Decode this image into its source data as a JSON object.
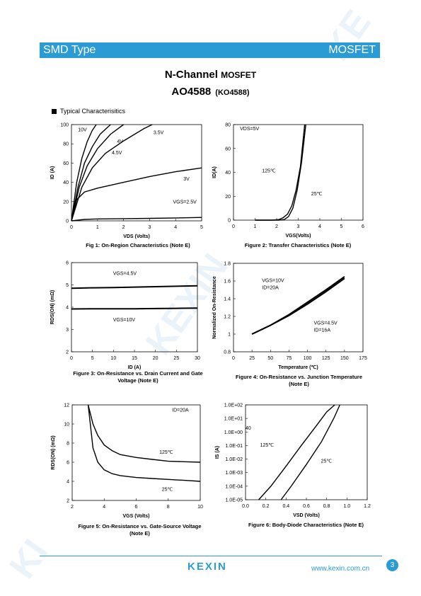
{
  "header": {
    "left": "SMD Type",
    "right": "MOSFET"
  },
  "title": {
    "line1_main": "N-Channel ",
    "line1_small": "MOSFET",
    "line2_main": "AO4588",
    "line2_small": "(KO4588)"
  },
  "section": "Typical  Characterisitics",
  "colors": {
    "accent": "#2b9bd6"
  },
  "charts": [
    {
      "id": "fig1",
      "type": "line",
      "caption1": "Fig 1: On-Region Characteristics (Note E)",
      "caption2": "",
      "xticks": [
        "0",
        "1",
        "2",
        "3",
        "4",
        "5"
      ],
      "yticks": [
        "0",
        "20",
        "40",
        "60",
        "80",
        "100"
      ],
      "xlabel": "VDS (Volts)",
      "ylabel": "ID (A)",
      "annotations": [
        "10V",
        "4V",
        "3.5V",
        "4.5V",
        "3V",
        "VGS=2.5V"
      ]
    },
    {
      "id": "fig2",
      "type": "line",
      "caption1": "Figure 2: Transfer Characteristics (Note E)",
      "caption2": "",
      "xticks": [
        "0",
        "1",
        "2",
        "3",
        "4",
        "5",
        "6"
      ],
      "yticks": [
        "0",
        "20",
        "40",
        "60",
        "80"
      ],
      "xlabel": "VGS(Volts)",
      "ylabel": "ID(A)",
      "annotations": [
        "VDS=5V",
        "125℃",
        "25℃"
      ]
    },
    {
      "id": "fig3",
      "type": "line",
      "caption1": "Figure 3: On-Resistance vs. Drain Current and Gate",
      "caption2": "Voltage (Note E)",
      "xticks": [
        "0",
        "5",
        "10",
        "15",
        "20",
        "25",
        "30"
      ],
      "yticks": [
        "2",
        "3",
        "4",
        "5",
        "6"
      ],
      "xlabel": "ID (A)",
      "ylabel": "RDS(ON) (mΩ)",
      "annotations": [
        "VGS=4.5V",
        "VGS=10V"
      ]
    },
    {
      "id": "fig4",
      "type": "line",
      "caption1": "Figure 4: On-Resistance vs. Junction Temperature",
      "caption2": "(Note E)",
      "xticks": [
        "0",
        "25",
        "50",
        "75",
        "100",
        "125",
        "150",
        "175"
      ],
      "yticks": [
        "0.8",
        "1",
        "1.2",
        "1.4",
        "1.6",
        "1.8"
      ],
      "xlabel": "Temperature (℃)",
      "ylabel": "Normalized On-Resistance",
      "annotations": [
        "VGS=10V",
        "ID=20A",
        "VGS=4.5V",
        "ID=16A"
      ]
    },
    {
      "id": "fig5",
      "type": "line",
      "caption1": "Figure 5: On-Resistance vs. Gate-Source Voltage",
      "caption2": "(Note E)",
      "xticks": [
        "2",
        "4",
        "6",
        "8",
        "10"
      ],
      "yticks": [
        "2",
        "4",
        "6",
        "8",
        "10",
        "12"
      ],
      "xlabel": "VGS (Volts)",
      "ylabel": "RDS(ON) (mΩ)",
      "annotations": [
        "ID=20A",
        "125℃",
        "25℃"
      ]
    },
    {
      "id": "fig6",
      "type": "line",
      "caption1": "Figure 6: Body-Diode Characteristics (Note E)",
      "caption2": "",
      "xticks": [
        "0.0",
        "0.2",
        "0.4",
        "0.6",
        "0.8",
        "1.0",
        "1.2"
      ],
      "yticks": [
        "1.0E-05",
        "1.0E-04",
        "1.0E-03",
        "1.0E-02",
        "1.0E-01",
        "1.0E+00",
        "1.0E+01",
        "1.0E+02"
      ],
      "xlabel": "VSD (Volts)",
      "ylabel": "IS (A)",
      "annotations": [
        "40",
        "125℃",
        "25℃"
      ]
    }
  ],
  "chart_data": [
    {
      "type": "line",
      "title": "Fig 1: On-Region Characteristics (Note E)",
      "xlabel": "VDS (Volts)",
      "ylabel": "ID (A)",
      "xlim": [
        0,
        5
      ],
      "ylim": [
        0,
        100
      ],
      "series": [
        {
          "name": "10V",
          "x": [
            0,
            0.2,
            0.4,
            0.6,
            0.8,
            0.95
          ],
          "y": [
            0,
            40,
            65,
            82,
            94,
            100
          ]
        },
        {
          "name": "4.5V",
          "x": [
            0,
            0.25,
            0.5,
            0.8,
            1.1,
            1.5
          ],
          "y": [
            0,
            35,
            60,
            77,
            90,
            100
          ]
        },
        {
          "name": "4V",
          "x": [
            0,
            0.3,
            0.6,
            1,
            1.5,
            2
          ],
          "y": [
            0,
            35,
            57,
            75,
            90,
            100
          ]
        },
        {
          "name": "3.5V",
          "x": [
            0,
            0.4,
            0.8,
            1.3,
            2,
            2.8,
            3.1
          ],
          "y": [
            0,
            35,
            55,
            70,
            83,
            96,
            100
          ]
        },
        {
          "name": "3V",
          "x": [
            0,
            0.2,
            0.5,
            1,
            2,
            3,
            4,
            5
          ],
          "y": [
            0,
            22,
            30,
            34,
            40,
            46,
            51,
            55
          ]
        },
        {
          "name": "VGS=2.5V",
          "x": [
            0,
            0.5,
            1,
            2,
            3,
            4,
            5
          ],
          "y": [
            0,
            1.5,
            2,
            2.3,
            2.6,
            3,
            3.5
          ]
        }
      ]
    },
    {
      "type": "line",
      "title": "Figure 2: Transfer Characteristics (Note E)",
      "xlabel": "VGS(Volts)",
      "ylabel": "ID(A)",
      "xlim": [
        0,
        6
      ],
      "ylim": [
        0,
        80
      ],
      "series": [
        {
          "name": "125℃",
          "x": [
            1,
            1.8,
            2.1,
            2.3,
            2.5,
            2.7,
            2.9,
            3.1,
            3.3
          ],
          "y": [
            0,
            0,
            0.5,
            2,
            5,
            12,
            25,
            45,
            80
          ]
        },
        {
          "name": "25℃",
          "x": [
            1,
            2.1,
            2.35,
            2.55,
            2.75,
            2.95,
            3.15,
            3.35
          ],
          "y": [
            0,
            0,
            0.5,
            3,
            10,
            25,
            48,
            80
          ]
        }
      ]
    },
    {
      "type": "line",
      "title": "Figure 3: On-Resistance vs. Drain Current and Gate Voltage (Note E)",
      "xlabel": "ID (A)",
      "ylabel": "RDS(ON) (mΩ)",
      "xlim": [
        0,
        30
      ],
      "ylim": [
        2,
        6
      ],
      "series": [
        {
          "name": "VGS=4.5V",
          "x": [
            0,
            5,
            10,
            15,
            20,
            25,
            30
          ],
          "y": [
            4.85,
            4.87,
            4.88,
            4.9,
            4.92,
            4.94,
            4.96
          ]
        },
        {
          "name": "VGS=10V",
          "x": [
            0,
            5,
            10,
            15,
            20,
            25,
            30
          ],
          "y": [
            3.92,
            3.93,
            3.93,
            3.93,
            3.94,
            3.95,
            3.96
          ]
        }
      ]
    },
    {
      "type": "line",
      "title": "Figure 4: On-Resistance vs. Junction Temperature (Note E)",
      "xlabel": "Temperature (℃)",
      "ylabel": "Normalized On-Resistance",
      "xlim": [
        0,
        175
      ],
      "ylim": [
        0.8,
        1.8
      ],
      "series": [
        {
          "name": "VGS=10V, ID=20A",
          "x": [
            25,
            50,
            75,
            100,
            125,
            150
          ],
          "y": [
            1.0,
            1.1,
            1.22,
            1.36,
            1.5,
            1.65
          ]
        },
        {
          "name": "VGS=4.5V, ID=16A",
          "x": [
            25,
            50,
            75,
            100,
            125,
            150
          ],
          "y": [
            1.0,
            1.1,
            1.21,
            1.34,
            1.48,
            1.63
          ]
        }
      ]
    },
    {
      "type": "line",
      "title": "Figure 5: On-Resistance vs. Gate-Source Voltage (Note E)",
      "xlabel": "VGS (Volts)",
      "ylabel": "RDS(ON) (mΩ)",
      "xlim": [
        2,
        10
      ],
      "ylim": [
        2,
        12
      ],
      "series": [
        {
          "name": "125℃",
          "x": [
            3,
            3.3,
            3.6,
            4,
            4.5,
            5,
            6,
            7,
            8,
            9,
            10
          ],
          "y": [
            12,
            10,
            8.8,
            7.8,
            7.2,
            6.8,
            6.5,
            6.3,
            6.1,
            6.05,
            6.0
          ]
        },
        {
          "name": "25℃",
          "x": [
            3,
            3.3,
            3.6,
            4,
            4.5,
            5,
            6,
            7,
            8,
            9,
            10
          ],
          "y": [
            12,
            7.5,
            6.0,
            5.2,
            4.8,
            4.6,
            4.4,
            4.3,
            4.2,
            4.1,
            4.0
          ]
        }
      ]
    },
    {
      "type": "line",
      "title": "Figure 6: Body-Diode Characteristics (Note E)",
      "xlabel": "VSD (Volts)",
      "ylabel": "IS (A)",
      "xlim": [
        0,
        1.2
      ],
      "ylim": [
        1e-05,
        100
      ],
      "yscale": "log",
      "series": [
        {
          "name": "125℃",
          "x": [
            0.13,
            0.25,
            0.4,
            0.55,
            0.7,
            0.8,
            0.88
          ],
          "y": [
            1e-05,
            0.0001,
            0.003,
            0.1,
            3,
            30,
            100
          ]
        },
        {
          "name": "25℃",
          "x": [
            0.35,
            0.45,
            0.6,
            0.75,
            0.87,
            0.93
          ],
          "y": [
            1e-05,
            0.0001,
            0.004,
            0.2,
            10,
            100
          ]
        }
      ]
    }
  ],
  "footer": {
    "logo": "KEXIN",
    "url": "www.kexin.com.cn",
    "page": "3"
  }
}
